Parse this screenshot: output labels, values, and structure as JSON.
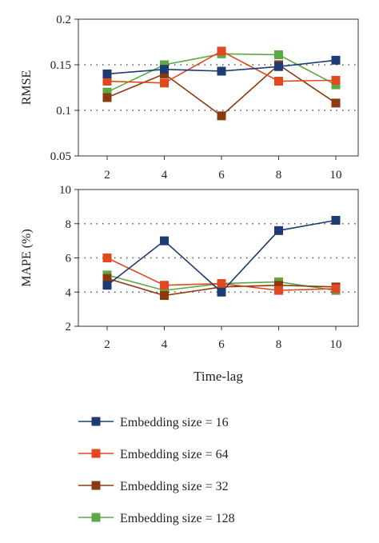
{
  "chart_data": [
    {
      "type": "line",
      "ylabel": "RMSE",
      "xlabel": "",
      "x": [
        2,
        4,
        6,
        8,
        10
      ],
      "x_ticks": [
        "2",
        "4",
        "6",
        "8",
        "10"
      ],
      "ylim": [
        0.05,
        0.2
      ],
      "y_ticks": [
        "0.05",
        "0.1",
        "0.15",
        "0.2"
      ],
      "y_tick_values": [
        0.05,
        0.1,
        0.15,
        0.2
      ],
      "grid": "dotted-horizontal",
      "series": [
        {
          "name": "Embedding size = 16",
          "values": [
            0.14,
            0.145,
            0.143,
            0.148,
            0.155
          ]
        },
        {
          "name": "Embedding size = 64",
          "values": [
            0.132,
            0.13,
            0.165,
            0.132,
            0.133
          ]
        },
        {
          "name": "Embedding size = 32",
          "values": [
            0.114,
            0.14,
            0.094,
            0.15,
            0.108
          ]
        },
        {
          "name": "Embedding size = 128",
          "values": [
            0.12,
            0.15,
            0.162,
            0.161,
            0.128
          ]
        }
      ]
    },
    {
      "type": "line",
      "ylabel": "MAPE (%)",
      "xlabel": "Time-lag",
      "x": [
        2,
        4,
        6,
        8,
        10
      ],
      "x_ticks": [
        "2",
        "4",
        "6",
        "8",
        "10"
      ],
      "ylim": [
        2,
        10
      ],
      "y_ticks": [
        "2",
        "4",
        "6",
        "8",
        "10"
      ],
      "y_tick_values": [
        2,
        4,
        6,
        8,
        10
      ],
      "grid": "dotted-horizontal",
      "series": [
        {
          "name": "Embedding size = 16",
          "values": [
            4.4,
            7.0,
            4.0,
            7.6,
            8.2
          ]
        },
        {
          "name": "Embedding size = 64",
          "values": [
            6.0,
            4.4,
            4.5,
            4.1,
            4.2
          ]
        },
        {
          "name": "Embedding size = 32",
          "values": [
            4.8,
            3.8,
            4.3,
            4.4,
            4.3
          ]
        },
        {
          "name": "Embedding size = 128",
          "values": [
            5.0,
            4.1,
            4.5,
            4.6,
            4.1
          ]
        }
      ]
    }
  ],
  "legend": {
    "placement": "bottom",
    "entries": [
      {
        "label": "Embedding size = 16",
        "color": "#1f3b73"
      },
      {
        "label": "Embedding size = 64",
        "color": "#e0491f"
      },
      {
        "label": "Embedding size = 32",
        "color": "#8b3a0e"
      },
      {
        "label": "Embedding size = 128",
        "color": "#5ba844"
      }
    ]
  },
  "series_colors": [
    "#1f3b73",
    "#e0491f",
    "#8b3a0e",
    "#5ba844"
  ]
}
